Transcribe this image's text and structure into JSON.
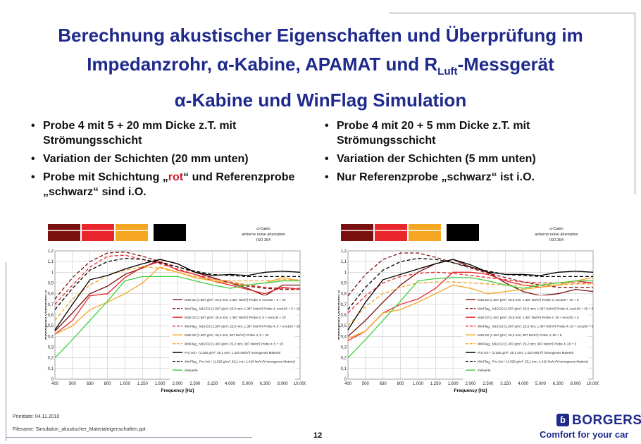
{
  "slide": {
    "title_line1": "Berechnung akustischer Eigenschaften und Überprüfung im",
    "title_line2_pre": "Impedanzrohr, α-Kabine, APAMAT und R",
    "title_line2_sub": "Luft",
    "title_line2_post": "-Messgerät",
    "title_line3": "α-Kabine und WinFlag Simulation",
    "left_bullets": {
      "b1": "Probe 4 mit 5 + 20 mm Dicke z.T. mit Strömungsschicht",
      "b2": "Variation der Schichten (20 mm unten)",
      "b3_pre": "Probe mit Schichtung „",
      "b3_red": "rot",
      "b3_post": "“ und Referenzprobe „schwarz“ sind i.O."
    },
    "right_bullets": {
      "b1": "Probe 4 mit 20 + 5 mm Dicke z.T. mit Strömungsschicht",
      "b2": "Variation der Schichten (5 mm unten)",
      "b3": "Nur Referenzprobe „schwarz“ ist i.O."
    }
  },
  "footer": {
    "printdate": "Printdate: 04.11.2010",
    "filename": "Filename: Simulation_akustischer_Materialeigenschaften.ppt",
    "page": "12",
    "logo": "BORGERS",
    "tagline": "Comfort for your car"
  },
  "colors": {
    "title": "#1f2a8c",
    "dark_red": "#7a0f0f",
    "red": "#e8262b",
    "orange": "#f5a623",
    "black": "#000000",
    "green": "#3ecf3e"
  },
  "chart_data": [
    {
      "type": "line",
      "annotation": [
        "α-Cabin",
        "airborne noise absorption",
        "ISO 354"
      ],
      "xlabel": "Frequency [Hz]",
      "ylabel": "Absorption Coefficient α",
      "x": [
        "400",
        "500",
        "630",
        "800",
        "1.000",
        "1.250",
        "1.600",
        "2.000",
        "2.500",
        "3.150",
        "4.000",
        "5.000",
        "6.300",
        "8.000",
        "10.000"
      ],
      "yticks": [
        "0",
        "0,1",
        "0,2",
        "0,3",
        "0,4",
        "0,5",
        "0,6",
        "0,7",
        "0,8",
        "0,9",
        "1",
        "1,1",
        "1,2"
      ],
      "ylim": [
        0,
        1.2
      ],
      "grid": true,
      "legend_position": "bottom-right inside plot",
      "swatches": [
        "#7a0f0f",
        "#e8262b",
        "#f5a623",
        "#000000"
      ],
      "series": [
        {
          "name": "M19 D2 (1.587 g/m²; 25,6 mm; 1.387 Ns/m³) Probe 4; evo100 + 5 + 20",
          "color": "#7a0f0f",
          "dash": false,
          "values": [
            0.45,
            0.62,
            0.8,
            0.87,
            0.98,
            1.04,
            1.12,
            1.08,
            1.0,
            0.95,
            0.9,
            0.85,
            0.78,
            0.88,
            0.88
          ]
        },
        {
          "name": "WinFlag_ M19 D2 (1.587 g/m²; 25,6 mm; 1.387 Ns/m³) Probe 4; evo100 + 5 + 20",
          "color": "#7a0f0f",
          "dash": true,
          "values": [
            0.75,
            0.95,
            1.1,
            1.18,
            1.19,
            1.15,
            1.1,
            1.05,
            1.0,
            0.95,
            0.9,
            0.87,
            0.85,
            0.84,
            0.84
          ]
        },
        {
          "name": "M19 D2 (1.587 g/m²; 25,6 mm; 1.387 Ns/m³) Probe 4; 5 + evo100 + 20",
          "color": "#e8262b",
          "dash": false,
          "values": [
            0.42,
            0.55,
            0.78,
            0.8,
            0.95,
            1.05,
            1.1,
            1.02,
            0.98,
            0.92,
            0.88,
            0.84,
            0.8,
            0.86,
            0.84
          ]
        },
        {
          "name": "WinFlag_ M19 D2 (1.587 g/m²; 25,6 mm; 1.387 Ns/m³) Probe 4; 5 + evo100 + 20",
          "color": "#e8262b",
          "dash": true,
          "values": [
            0.7,
            0.88,
            1.05,
            1.15,
            1.16,
            1.12,
            1.08,
            1.03,
            0.98,
            0.94,
            0.91,
            0.88,
            0.86,
            0.85,
            0.85
          ]
        },
        {
          "name": "M19 D2 (1.487 g/m²; 25,2 mm; 387 Ns/m³) Probe 4; 5 + 20",
          "color": "#f5a623",
          "dash": false,
          "values": [
            0.42,
            0.5,
            0.65,
            0.72,
            0.8,
            0.9,
            1.05,
            1.0,
            0.95,
            0.92,
            0.9,
            0.88,
            0.9,
            0.95,
            0.92
          ]
        },
        {
          "name": "WinFlag_ M19 D2 (1.487 g/m²; 25,2 mm; 387 Ns/m³) Probe 4; 5 + 20",
          "color": "#f5a623",
          "dash": true,
          "values": [
            0.55,
            0.75,
            0.88,
            0.97,
            1.02,
            1.05,
            1.04,
            1.0,
            0.96,
            0.93,
            0.92,
            0.92,
            0.92,
            0.93,
            0.93
          ]
        },
        {
          "name": "Pro.Vol.+ (1.525 g/m²; 25,1 mm; 1.420 Ns/m³) homogenes Material",
          "color": "#000000",
          "dash": false,
          "values": [
            0.46,
            0.7,
            0.93,
            0.97,
            1.03,
            1.08,
            1.12,
            1.08,
            1.0,
            0.97,
            0.98,
            0.97,
            1.0,
            1.01,
            1.0
          ]
        },
        {
          "name": "WinFlag_ Pro.Vol.+ (1.525 g/m²; 25,1 mm; 1.420 Ns/m³) homogenes Material",
          "color": "#000000",
          "dash": true,
          "values": [
            0.65,
            0.85,
            1.02,
            1.1,
            1.13,
            1.12,
            1.09,
            1.05,
            1.01,
            0.98,
            0.97,
            0.96,
            0.96,
            0.96,
            0.96
          ]
        },
        {
          "name": "Zielwerte",
          "color": "#3ecf3e",
          "dash": false,
          "values": [
            0.2,
            0.37,
            0.55,
            0.73,
            0.92,
            0.96,
            0.96,
            0.96,
            0.92,
            0.88,
            0.85,
            0.88,
            0.9,
            0.92,
            0.92
          ]
        }
      ]
    },
    {
      "type": "line",
      "annotation": [
        "α-Cabin",
        "airborne noise absorption",
        "ISO 354"
      ],
      "xlabel": "Frequency [Hz]",
      "ylabel": "Absorption Coefficient α",
      "x": [
        "400",
        "500",
        "630",
        "800",
        "1.000",
        "1.250",
        "1.600",
        "2.000",
        "2.500",
        "3.150",
        "4.000",
        "5.000",
        "6.300",
        "8.000",
        "10.000"
      ],
      "yticks": [
        "0",
        "0,1",
        "0,2",
        "0,3",
        "0,4",
        "0,5",
        "0,6",
        "0,7",
        "0,8",
        "0,9",
        "1",
        "1,1",
        "1,2"
      ],
      "ylim": [
        0,
        1.2
      ],
      "grid": true,
      "legend_position": "bottom-right inside plot",
      "swatches": [
        "#7a0f0f",
        "#e8262b",
        "#f5a623",
        "#000000"
      ],
      "series": [
        {
          "name": "M19 D2 (1.587 g/m²; 25,6 mm; 1.387 Ns/m³) Probe 4; evo100 + 20 + 5",
          "color": "#7a0f0f",
          "dash": false,
          "values": [
            0.4,
            0.55,
            0.72,
            0.88,
            1.0,
            1.08,
            1.12,
            1.05,
            1.0,
            0.9,
            0.82,
            0.78,
            0.8,
            0.84,
            0.82
          ]
        },
        {
          "name": "WinFlag_ M19 D2 (1.587 g/m²; 25,6 mm; 1.387 Ns/m³) Probe 4; evo100 + 20 + 5",
          "color": "#7a0f0f",
          "dash": true,
          "values": [
            0.78,
            0.98,
            1.12,
            1.18,
            1.18,
            1.14,
            1.09,
            1.04,
            0.99,
            0.95,
            0.91,
            0.88,
            0.86,
            0.86,
            0.86
          ]
        },
        {
          "name": "M19 D2 (1.587 g/m²; 25,6 mm; 1.387 Ns/m³) Probe 4; 20 + evo100 + 5",
          "color": "#e8262b",
          "dash": false,
          "values": [
            0.36,
            0.45,
            0.62,
            0.7,
            0.75,
            0.85,
            1.0,
            1.0,
            0.98,
            0.92,
            0.88,
            0.86,
            0.88,
            0.92,
            0.9
          ]
        },
        {
          "name": "WinFlag_ M19 D2 (1.587 g/m²; 25,6 mm; 1.387 Ns/m³) Probe 4; 20 + evo100 + 5",
          "color": "#e8262b",
          "dash": true,
          "values": [
            0.62,
            0.78,
            0.9,
            0.96,
            0.99,
            1.0,
            0.99,
            0.97,
            0.95,
            0.93,
            0.91,
            0.9,
            0.9,
            0.9,
            0.9
          ]
        },
        {
          "name": "M19 D2 (1.487 g/m²; 25,2 mm; 387 Ns/m³) Probe 4; 20 + 5",
          "color": "#f5a623",
          "dash": false,
          "values": [
            0.38,
            0.45,
            0.62,
            0.65,
            0.72,
            0.8,
            0.88,
            0.85,
            0.8,
            0.82,
            0.84,
            0.86,
            0.88,
            0.92,
            0.95
          ]
        },
        {
          "name": "WinFlag_ M19 D2 (1.487 g/m²; 25,2 mm; 387 Ns/m³) Probe 4; 20 + 5",
          "color": "#f5a623",
          "dash": true,
          "values": [
            0.5,
            0.68,
            0.8,
            0.86,
            0.9,
            0.91,
            0.91,
            0.9,
            0.89,
            0.88,
            0.88,
            0.88,
            0.88,
            0.89,
            0.89
          ]
        },
        {
          "name": "Pro.Vol.+ (1.525 g/m²; 25,1 mm; 1.420 Ns/m³) homogenes Material",
          "color": "#000000",
          "dash": false,
          "values": [
            0.46,
            0.72,
            0.93,
            0.98,
            1.03,
            1.08,
            1.12,
            1.07,
            1.0,
            0.98,
            0.98,
            0.97,
            1.0,
            1.01,
            1.0
          ]
        },
        {
          "name": "WinFlag_ Pro.Vol.+ (1.525 g/m²; 25,1 mm; 1.420 Ns/m³) homogenes Material",
          "color": "#000000",
          "dash": true,
          "values": [
            0.65,
            0.86,
            1.02,
            1.1,
            1.13,
            1.12,
            1.09,
            1.05,
            1.01,
            0.98,
            0.97,
            0.96,
            0.96,
            0.96,
            0.96
          ]
        },
        {
          "name": "Zielwerte",
          "color": "#3ecf3e",
          "dash": false,
          "values": [
            0.2,
            0.37,
            0.55,
            0.73,
            0.92,
            0.94,
            0.95,
            0.95,
            0.92,
            0.88,
            0.85,
            0.88,
            0.9,
            0.92,
            0.92
          ]
        }
      ]
    }
  ]
}
